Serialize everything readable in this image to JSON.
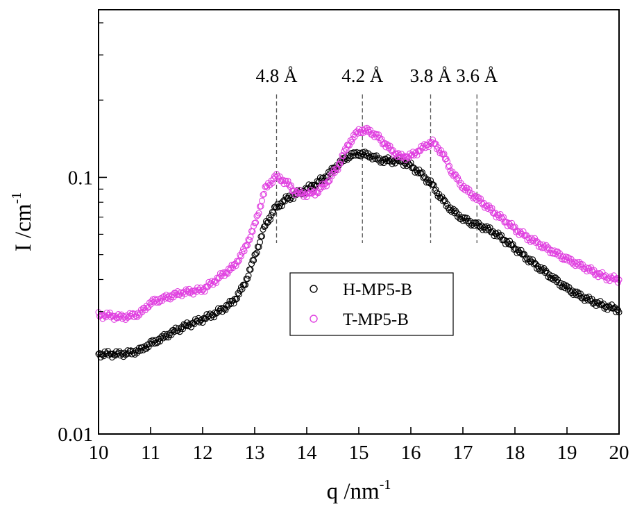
{
  "chart_data": {
    "type": "scatter",
    "xlabel": "q /nm",
    "xlabel_sup": "-1",
    "ylabel": "I /cm",
    "ylabel_sup": "-1",
    "xlim": [
      10,
      20
    ],
    "ylim": [
      0.01,
      0.45
    ],
    "yscale": "log",
    "xticks": [
      10,
      11,
      12,
      13,
      14,
      15,
      16,
      17,
      18,
      19,
      20
    ],
    "xtick_labels": [
      "10",
      "11",
      "12",
      "13",
      "14",
      "15",
      "16",
      "17",
      "18",
      "19",
      "20"
    ],
    "yticks": [
      0.01,
      0.1
    ],
    "ytick_labels": [
      "0.01",
      "0.1"
    ],
    "grid": false,
    "legend_position": "center-left",
    "annotations": [
      {
        "x": 13.42,
        "label": "4.8 Å"
      },
      {
        "x": 15.07,
        "label": "4.2 Å"
      },
      {
        "x": 16.38,
        "label": "3.8 Å"
      },
      {
        "x": 17.27,
        "label": "3.6 Å"
      }
    ],
    "series": [
      {
        "name": "H-MP5-B",
        "color": "#000000",
        "x": [
          10.0,
          10.2,
          10.4,
          10.6,
          10.8,
          11.0,
          11.2,
          11.4,
          11.6,
          11.8,
          12.0,
          12.2,
          12.4,
          12.6,
          12.8,
          13.0,
          13.2,
          13.4,
          13.6,
          13.8,
          14.0,
          14.2,
          14.4,
          14.6,
          14.8,
          15.0,
          15.2,
          15.4,
          15.6,
          15.8,
          16.0,
          16.2,
          16.4,
          16.6,
          16.8,
          17.0,
          17.2,
          17.4,
          17.6,
          17.8,
          18.0,
          18.2,
          18.4,
          18.6,
          18.8,
          19.0,
          19.2,
          19.4,
          19.6,
          19.8,
          20.0
        ],
        "y": [
          0.0205,
          0.0205,
          0.0205,
          0.0207,
          0.0212,
          0.0225,
          0.0235,
          0.0248,
          0.026,
          0.027,
          0.028,
          0.0292,
          0.0308,
          0.033,
          0.038,
          0.049,
          0.065,
          0.076,
          0.082,
          0.086,
          0.09,
          0.095,
          0.102,
          0.112,
          0.121,
          0.124,
          0.122,
          0.117,
          0.116,
          0.116,
          0.111,
          0.103,
          0.094,
          0.082,
          0.074,
          0.069,
          0.066,
          0.064,
          0.061,
          0.057,
          0.053,
          0.049,
          0.0455,
          0.0425,
          0.0395,
          0.037,
          0.035,
          0.0335,
          0.0322,
          0.0312,
          0.0305
        ]
      },
      {
        "name": "T-MP5-B",
        "color": "#e040e0",
        "x": [
          10.0,
          10.2,
          10.4,
          10.6,
          10.8,
          11.0,
          11.2,
          11.4,
          11.6,
          11.8,
          12.0,
          12.2,
          12.4,
          12.6,
          12.8,
          13.0,
          13.2,
          13.4,
          13.6,
          13.8,
          14.0,
          14.2,
          14.4,
          14.6,
          14.8,
          15.0,
          15.2,
          15.4,
          15.6,
          15.8,
          16.0,
          16.2,
          16.4,
          16.6,
          16.8,
          17.0,
          17.2,
          17.4,
          17.6,
          17.8,
          18.0,
          18.2,
          18.4,
          18.6,
          18.8,
          19.0,
          19.2,
          19.4,
          19.6,
          19.8,
          20.0
        ],
        "y": [
          0.029,
          0.029,
          0.0285,
          0.0288,
          0.0295,
          0.0325,
          0.0335,
          0.0345,
          0.0355,
          0.036,
          0.0365,
          0.039,
          0.042,
          0.045,
          0.052,
          0.065,
          0.09,
          0.101,
          0.096,
          0.087,
          0.086,
          0.088,
          0.096,
          0.11,
          0.135,
          0.152,
          0.152,
          0.142,
          0.129,
          0.12,
          0.121,
          0.129,
          0.138,
          0.125,
          0.104,
          0.092,
          0.085,
          0.079,
          0.073,
          0.068,
          0.063,
          0.059,
          0.056,
          0.053,
          0.0505,
          0.048,
          0.046,
          0.044,
          0.042,
          0.0405,
          0.04
        ]
      }
    ]
  }
}
